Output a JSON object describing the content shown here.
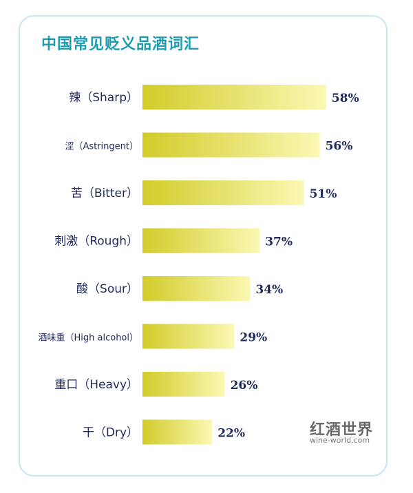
{
  "chart_data": {
    "type": "bar",
    "orientation": "horizontal",
    "title": "中国常见贬义品酒词汇",
    "categories": [
      "辣（Sharp）",
      "涩（Astringent）",
      "苦（Bitter）",
      "刺激（Rough）",
      "酸（Sour）",
      "酒味重（High alcohol）",
      "重口（Heavy）",
      "干（Dry）"
    ],
    "values": [
      58,
      56,
      51,
      37,
      34,
      29,
      26,
      22
    ],
    "value_labels": [
      "58%",
      "56%",
      "51%",
      "37%",
      "34%",
      "29%",
      "26%",
      "22%"
    ],
    "unit": "%",
    "xlim": [
      0,
      100
    ],
    "grid": false,
    "legend": "none"
  },
  "colors": {
    "title": "#1d9bb0",
    "bar_start": "#d2cc2a",
    "bar_end": "#fbf8b4",
    "text": "#1f2a5c",
    "border": "#c8e4f0"
  },
  "watermark": {
    "cn": "红酒世界",
    "en": "wine-world.com"
  }
}
